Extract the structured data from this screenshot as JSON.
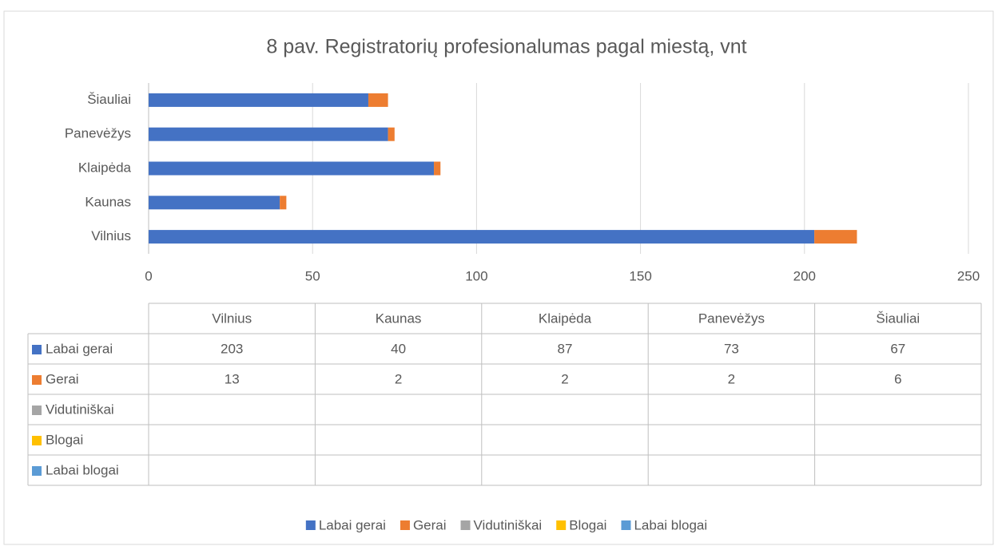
{
  "chart_data": {
    "type": "stacked-barh",
    "title": "8 pav. Registratorių profesionalumas pagal miestą, vnt",
    "categories": [
      "Vilnius",
      "Kaunas",
      "Klaipėda",
      "Panevėžys",
      "Šiauliai"
    ],
    "series": [
      {
        "name": "Labai gerai",
        "color": "#4472c4",
        "values": [
          203,
          40,
          87,
          73,
          67
        ]
      },
      {
        "name": "Gerai",
        "color": "#ed7d31",
        "values": [
          13,
          2,
          2,
          2,
          6
        ]
      },
      {
        "name": "Vidutiniškai",
        "color": "#a5a5a5",
        "values": [
          null,
          null,
          null,
          null,
          null
        ]
      },
      {
        "name": "Blogai",
        "color": "#ffc000",
        "values": [
          null,
          null,
          null,
          null,
          null
        ]
      },
      {
        "name": "Labai blogai",
        "color": "#5b9bd5",
        "values": [
          null,
          null,
          null,
          null,
          null
        ]
      }
    ],
    "xlim": [
      0,
      250
    ],
    "xticks": [
      0,
      50,
      100,
      150,
      200,
      250
    ],
    "grid": true,
    "data_table": true,
    "legend": "bottom"
  }
}
